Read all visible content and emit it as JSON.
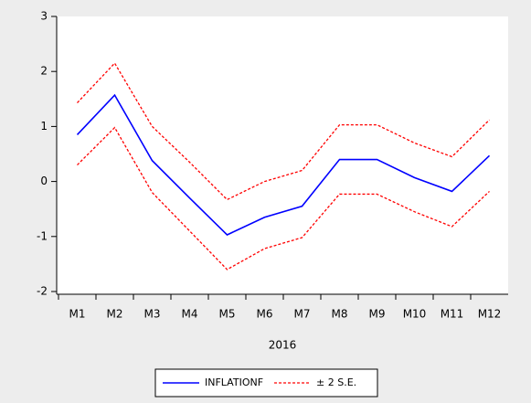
{
  "chart_data": {
    "type": "line",
    "categories": [
      "M1",
      "M2",
      "M3",
      "M4",
      "M5",
      "M6",
      "M7",
      "M8",
      "M9",
      "M10",
      "M11",
      "M12"
    ],
    "xlabel": "2016",
    "series": [
      {
        "name": "INFLATIONF",
        "color": "#0000ff",
        "dash": false,
        "values": [
          0.85,
          1.57,
          0.38,
          -0.3,
          -0.97,
          -0.65,
          -0.45,
          0.4,
          0.4,
          0.07,
          -0.18,
          0.47
        ]
      },
      {
        "name": "± 2 S.E.",
        "color": "#ff0000",
        "dash": true,
        "values": [
          1.43,
          2.15,
          1.0,
          0.35,
          -0.33,
          0.0,
          0.2,
          1.03,
          1.03,
          0.7,
          0.45,
          1.12
        ]
      },
      {
        "color": "#ff0000",
        "dash": true,
        "values": [
          0.3,
          0.98,
          -0.2,
          -0.9,
          -1.6,
          -1.22,
          -1.02,
          -0.23,
          -0.23,
          -0.55,
          -0.82,
          -0.18
        ]
      }
    ],
    "ylim": [
      -2.05,
      3
    ],
    "yticks": [
      -2,
      -1,
      0,
      1,
      2,
      3
    ]
  }
}
